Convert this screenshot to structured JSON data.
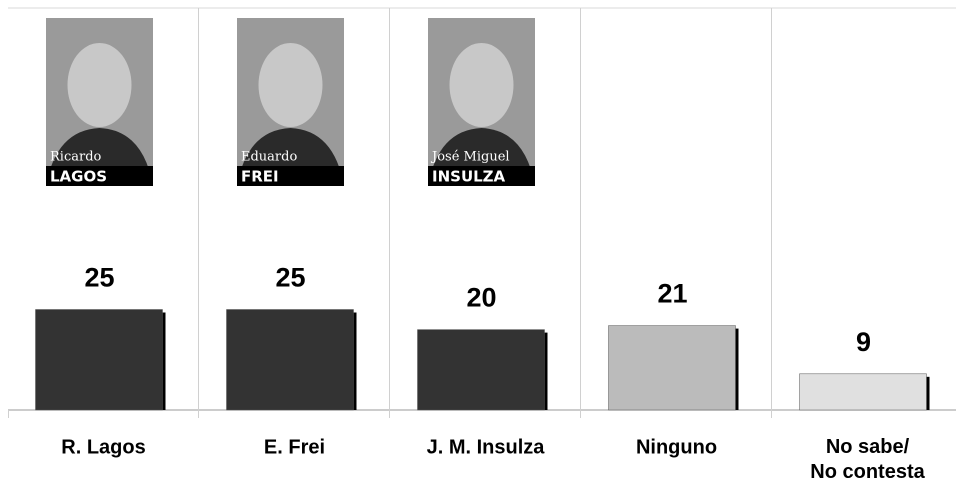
{
  "chart_data": {
    "type": "bar",
    "categories": [
      "R. Lagos",
      "E. Frei",
      "J. M. Insulza",
      "Ninguno",
      "No sabe/\nNo contesta"
    ],
    "values": [
      25,
      25,
      20,
      21,
      9
    ],
    "colors": [
      "#333333",
      "#333333",
      "#333333",
      "#bbbbbb",
      "#e0e0e0"
    ],
    "ylim": [
      0,
      100
    ],
    "photos": [
      {
        "first": "Ricardo",
        "last": "LAGOS"
      },
      {
        "first": "Eduardo",
        "last": "FREI"
      },
      {
        "first": "José Miguel",
        "last": "INSULZA"
      }
    ]
  }
}
